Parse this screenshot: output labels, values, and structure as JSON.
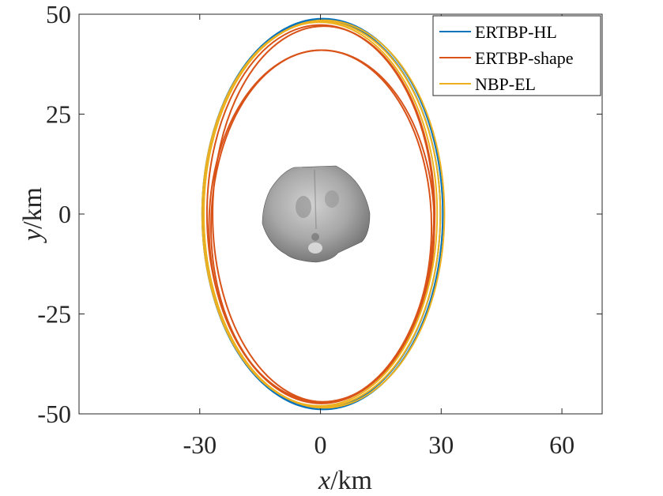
{
  "chart_data": {
    "type": "line",
    "title": "",
    "xlabel": {
      "var": "x",
      "unit": "/km"
    },
    "ylabel": {
      "var": "y",
      "unit": "/km"
    },
    "xlim": [
      -60,
      70
    ],
    "ylim": [
      -50,
      50
    ],
    "xticks": [
      -30,
      0,
      30,
      60
    ],
    "yticks": [
      -50,
      -25,
      0,
      25,
      50
    ],
    "xtick_labels": [
      "-30",
      "0",
      "30",
      "60"
    ],
    "ytick_labels": [
      "-50",
      "-25",
      "0",
      "25",
      "50"
    ],
    "grid": false,
    "legend_position": "top-right",
    "series": [
      {
        "name": "ERTBP-HL",
        "color": "#0072BD",
        "orbits": [
          {
            "cx": 0.2,
            "cy": 0,
            "a": 29.6,
            "b": 48.6
          },
          {
            "cx": 0.6,
            "cy": 0,
            "a": 29.8,
            "b": 48.9
          }
        ]
      },
      {
        "name": "ERTBP-shape",
        "color": "#D95319",
        "orbits": [
          {
            "cx": 0.0,
            "cy": 0,
            "a": 28.2,
            "b": 47.3
          },
          {
            "cx": 0.3,
            "cy": -3.0,
            "a": 28.0,
            "b": 44.0
          },
          {
            "cx": 0.8,
            "cy": 0,
            "a": 27.6,
            "b": 47.0
          },
          {
            "cx": 0.2,
            "cy": -3.2,
            "a": 27.4,
            "b": 44.2
          }
        ]
      },
      {
        "name": "NBP-EL",
        "color": "#EDB120",
        "orbits": [
          {
            "cx": 0.4,
            "cy": 0,
            "a": 29.4,
            "b": 48.2
          },
          {
            "cx": 0.9,
            "cy": 0,
            "a": 29.9,
            "b": 48.5
          },
          {
            "cx": -0.2,
            "cy": 0,
            "a": 29.2,
            "b": 48.0
          }
        ]
      }
    ],
    "body": {
      "name": "asteroid-shape",
      "color": "#9a9a9a"
    }
  }
}
